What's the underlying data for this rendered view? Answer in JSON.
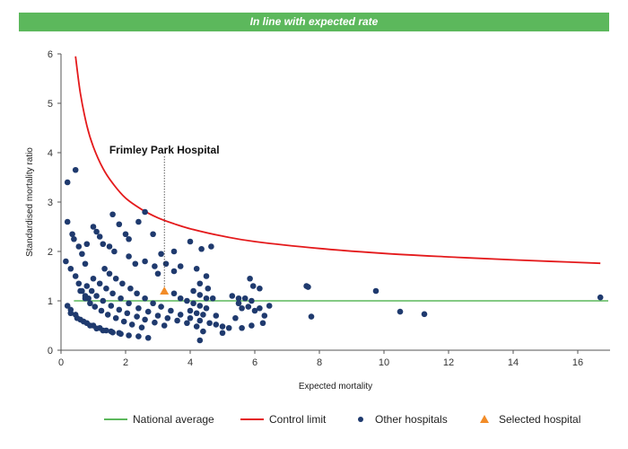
{
  "banner": {
    "text": "In line with expected rate",
    "color": "#5cb85c"
  },
  "colors": {
    "national_average": "#5cb85c",
    "control_limit": "#e41a1c",
    "other_hospitals": "#1f3a6e",
    "selected_hospital": "#f28c28"
  },
  "chart_data": {
    "type": "scatter",
    "xlabel": "Expected mortality",
    "ylabel": "Standardised mortality ratio",
    "xlim": [
      0,
      17
    ],
    "ylim": [
      0,
      6
    ],
    "xticks": [
      0,
      2,
      4,
      6,
      8,
      10,
      12,
      14,
      16
    ],
    "yticks": [
      0,
      1,
      2,
      3,
      4,
      5,
      6
    ],
    "grid": false,
    "legend": {
      "position": "bottom",
      "items": [
        {
          "name": "National average",
          "marker": "line",
          "color": "#5cb85c"
        },
        {
          "name": "Control limit",
          "marker": "line",
          "color": "#e41a1c"
        },
        {
          "name": "Other hospitals",
          "marker": "circle",
          "color": "#1f3a6e"
        },
        {
          "name": "Selected hospital",
          "marker": "triangle",
          "color": "#f28c28"
        }
      ]
    },
    "annotation": {
      "text": "Frimley Park Hospital",
      "x": 3.2,
      "y": 1.2
    },
    "national_average": {
      "name": "National average",
      "y": 1
    },
    "control_limit": {
      "name": "Control limit",
      "x": [
        0.45,
        0.6,
        0.8,
        1.0,
        1.3,
        1.6,
        2.0,
        2.5,
        3.0,
        3.5,
        4.0,
        5.0,
        6.0,
        8.0,
        10.0,
        12.0,
        14.0,
        16.7
      ],
      "y": [
        5.95,
        5.2,
        4.55,
        4.12,
        3.68,
        3.38,
        3.08,
        2.85,
        2.68,
        2.56,
        2.46,
        2.31,
        2.2,
        2.06,
        1.96,
        1.89,
        1.83,
        1.76
      ]
    },
    "series": [
      {
        "name": "Other hospitals",
        "points": [
          [
            0.2,
            3.4
          ],
          [
            0.45,
            3.65
          ],
          [
            0.2,
            2.6
          ],
          [
            0.35,
            2.35
          ],
          [
            0.4,
            2.25
          ],
          [
            0.55,
            2.1
          ],
          [
            0.65,
            1.95
          ],
          [
            0.8,
            2.15
          ],
          [
            0.75,
            1.75
          ],
          [
            0.15,
            1.8
          ],
          [
            0.3,
            1.65
          ],
          [
            0.45,
            1.5
          ],
          [
            0.55,
            1.35
          ],
          [
            0.65,
            1.2
          ],
          [
            0.75,
            1.1
          ],
          [
            0.85,
            1.05
          ],
          [
            1.0,
            2.5
          ],
          [
            1.1,
            2.4
          ],
          [
            1.2,
            2.3
          ],
          [
            1.3,
            2.15
          ],
          [
            1.5,
            2.1
          ],
          [
            1.65,
            2.0
          ],
          [
            1.6,
            2.75
          ],
          [
            1.8,
            2.55
          ],
          [
            2.0,
            2.35
          ],
          [
            2.1,
            2.25
          ],
          [
            2.4,
            2.6
          ],
          [
            2.6,
            2.8
          ],
          [
            2.85,
            2.35
          ],
          [
            2.1,
            1.9
          ],
          [
            2.3,
            1.75
          ],
          [
            2.6,
            1.8
          ],
          [
            2.9,
            1.7
          ],
          [
            3.0,
            1.55
          ],
          [
            3.25,
            1.75
          ],
          [
            3.5,
            1.6
          ],
          [
            3.7,
            1.7
          ],
          [
            3.1,
            1.95
          ],
          [
            3.5,
            2.0
          ],
          [
            4.0,
            2.2
          ],
          [
            4.35,
            2.05
          ],
          [
            4.65,
            2.1
          ],
          [
            4.2,
            1.65
          ],
          [
            4.5,
            1.5
          ],
          [
            4.3,
            1.35
          ],
          [
            4.55,
            1.25
          ],
          [
            4.7,
            1.05
          ],
          [
            1.35,
            1.65
          ],
          [
            1.5,
            1.55
          ],
          [
            1.7,
            1.45
          ],
          [
            1.9,
            1.35
          ],
          [
            2.15,
            1.25
          ],
          [
            2.35,
            1.15
          ],
          [
            2.6,
            1.05
          ],
          [
            2.85,
            0.95
          ],
          [
            3.1,
            0.88
          ],
          [
            3.4,
            0.8
          ],
          [
            3.7,
            0.72
          ],
          [
            4.0,
            0.65
          ],
          [
            4.3,
            0.6
          ],
          [
            1.0,
            1.45
          ],
          [
            1.2,
            1.35
          ],
          [
            1.4,
            1.25
          ],
          [
            1.6,
            1.15
          ],
          [
            1.85,
            1.05
          ],
          [
            2.1,
            0.95
          ],
          [
            2.4,
            0.85
          ],
          [
            2.7,
            0.78
          ],
          [
            3.0,
            0.7
          ],
          [
            3.3,
            0.65
          ],
          [
            3.6,
            0.6
          ],
          [
            3.9,
            0.55
          ],
          [
            4.2,
            0.48
          ],
          [
            0.8,
            1.3
          ],
          [
            0.95,
            1.2
          ],
          [
            1.1,
            1.1
          ],
          [
            1.3,
            1.0
          ],
          [
            1.55,
            0.9
          ],
          [
            1.8,
            0.82
          ],
          [
            2.05,
            0.75
          ],
          [
            2.35,
            0.68
          ],
          [
            2.6,
            0.62
          ],
          [
            2.9,
            0.56
          ],
          [
            3.2,
            0.5
          ],
          [
            0.6,
            1.2
          ],
          [
            0.75,
            1.05
          ],
          [
            0.9,
            0.95
          ],
          [
            1.05,
            0.88
          ],
          [
            1.25,
            0.8
          ],
          [
            1.45,
            0.72
          ],
          [
            1.7,
            0.65
          ],
          [
            1.95,
            0.58
          ],
          [
            2.2,
            0.52
          ],
          [
            2.5,
            0.46
          ],
          [
            0.2,
            0.9
          ],
          [
            0.3,
            0.82
          ],
          [
            0.45,
            0.72
          ],
          [
            0.6,
            0.62
          ],
          [
            0.8,
            0.55
          ],
          [
            1.0,
            0.5
          ],
          [
            1.2,
            0.45
          ],
          [
            1.4,
            0.4
          ],
          [
            1.6,
            0.36
          ],
          [
            1.85,
            0.33
          ],
          [
            2.1,
            0.3
          ],
          [
            2.4,
            0.28
          ],
          [
            2.7,
            0.25
          ],
          [
            0.3,
            0.75
          ],
          [
            0.5,
            0.65
          ],
          [
            0.7,
            0.58
          ],
          [
            0.9,
            0.5
          ],
          [
            1.1,
            0.44
          ],
          [
            1.3,
            0.4
          ],
          [
            1.55,
            0.38
          ],
          [
            1.8,
            0.35
          ],
          [
            3.5,
            1.15
          ],
          [
            3.7,
            1.05
          ],
          [
            3.9,
            1.0
          ],
          [
            4.1,
            0.95
          ],
          [
            4.3,
            0.9
          ],
          [
            4.5,
            0.85
          ],
          [
            4.1,
            1.2
          ],
          [
            4.3,
            1.12
          ],
          [
            4.5,
            1.05
          ],
          [
            4.0,
            0.8
          ],
          [
            4.2,
            0.75
          ],
          [
            4.4,
            0.72
          ],
          [
            4.8,
            0.7
          ],
          [
            4.3,
            0.2
          ],
          [
            4.4,
            0.38
          ],
          [
            4.6,
            0.55
          ],
          [
            4.8,
            0.52
          ],
          [
            5.0,
            0.48
          ],
          [
            5.2,
            0.45
          ],
          [
            5.0,
            0.35
          ],
          [
            5.3,
            1.1
          ],
          [
            5.5,
            1.05
          ],
          [
            5.7,
            1.05
          ],
          [
            5.9,
            1.0
          ],
          [
            5.5,
            0.95
          ],
          [
            5.6,
            0.85
          ],
          [
            5.8,
            0.88
          ],
          [
            6.0,
            0.8
          ],
          [
            5.4,
            0.65
          ],
          [
            5.6,
            0.45
          ],
          [
            5.9,
            0.5
          ],
          [
            6.15,
            0.85
          ],
          [
            6.3,
            0.7
          ],
          [
            6.25,
            0.55
          ],
          [
            6.45,
            0.9
          ],
          [
            5.85,
            1.45
          ],
          [
            5.95,
            1.3
          ],
          [
            6.15,
            1.25
          ],
          [
            7.6,
            1.3
          ],
          [
            7.65,
            1.28
          ],
          [
            7.75,
            0.68
          ],
          [
            9.75,
            1.2
          ],
          [
            10.5,
            0.78
          ],
          [
            11.25,
            0.73
          ],
          [
            16.7,
            1.07
          ]
        ]
      },
      {
        "name": "Selected hospital",
        "points": [
          [
            3.2,
            1.2
          ]
        ]
      }
    ]
  }
}
